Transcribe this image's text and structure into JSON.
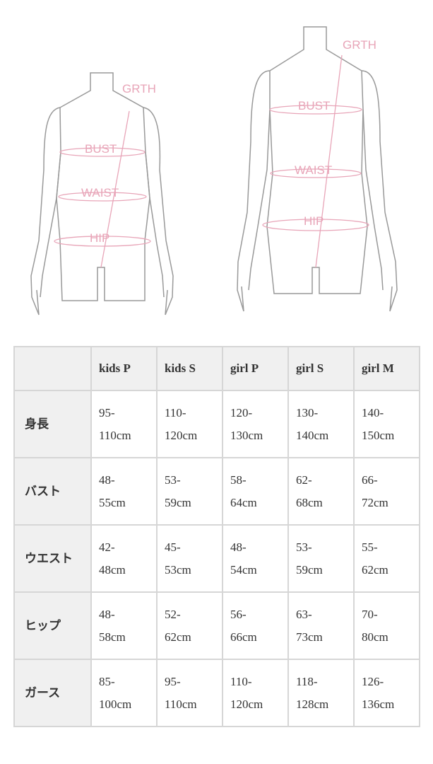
{
  "figures": {
    "labels": [
      "GRTH",
      "BUST",
      "WAIST",
      "HIP"
    ],
    "line_color": "#e8a5b8",
    "outline_color": "#999999"
  },
  "table": {
    "columns": [
      "",
      "kids P",
      "kids S",
      "girl P",
      "girl S",
      "girl M"
    ],
    "rows": [
      {
        "label": "身長",
        "values": [
          [
            "95-",
            "110cm"
          ],
          [
            "110-",
            "120cm"
          ],
          [
            "120-",
            "130cm"
          ],
          [
            "130-",
            "140cm"
          ],
          [
            "140-",
            "150cm"
          ]
        ]
      },
      {
        "label": "バスト",
        "values": [
          [
            "48-",
            "55cm"
          ],
          [
            "53-",
            "59cm"
          ],
          [
            "58-",
            "64cm"
          ],
          [
            "62-",
            "68cm"
          ],
          [
            "66-",
            "72cm"
          ]
        ]
      },
      {
        "label": "ウエスト",
        "values": [
          [
            "42-",
            "48cm"
          ],
          [
            "45-",
            "53cm"
          ],
          [
            "48-",
            "54cm"
          ],
          [
            "53-",
            "59cm"
          ],
          [
            "55-",
            "62cm"
          ]
        ]
      },
      {
        "label": "ヒップ",
        "values": [
          [
            "48-",
            "58cm"
          ],
          [
            "52-",
            "62cm"
          ],
          [
            "56-",
            "66cm"
          ],
          [
            "63-",
            "73cm"
          ],
          [
            "70-",
            "80cm"
          ]
        ]
      },
      {
        "label": "ガース",
        "values": [
          [
            "85-",
            "100cm"
          ],
          [
            "95-",
            "110cm"
          ],
          [
            "110-",
            "120cm"
          ],
          [
            "118-",
            "128cm"
          ],
          [
            "126-",
            "136cm"
          ]
        ]
      }
    ]
  }
}
